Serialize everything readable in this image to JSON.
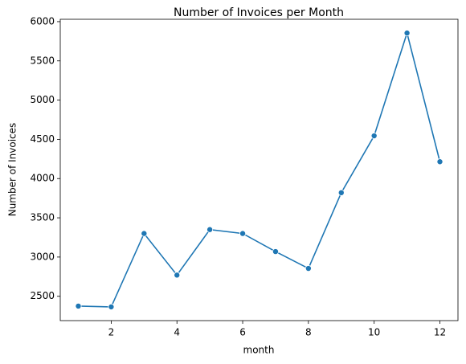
{
  "chart_data": {
    "type": "line",
    "title": "Number of Invoices per Month",
    "x_label": "month",
    "y_label": "Number of Invoices",
    "x": [
      1,
      2,
      3,
      4,
      5,
      6,
      7,
      8,
      9,
      10,
      11,
      12
    ],
    "series": [
      {
        "name": "Number of Invoices",
        "color": "#1f77b4",
        "values": [
          2375,
          2365,
          3300,
          2770,
          3350,
          3300,
          3070,
          2855,
          3820,
          4545,
          5855,
          4215
        ]
      }
    ],
    "xlim": [
      0.45,
      12.55
    ],
    "xticks": [
      2,
      4,
      6,
      8,
      10,
      12
    ],
    "ylim": [
      2190,
      6030
    ],
    "yticks": [
      2500,
      3000,
      3500,
      4000,
      4500,
      5000,
      5500,
      6000
    ],
    "markers": true,
    "grid": false
  }
}
